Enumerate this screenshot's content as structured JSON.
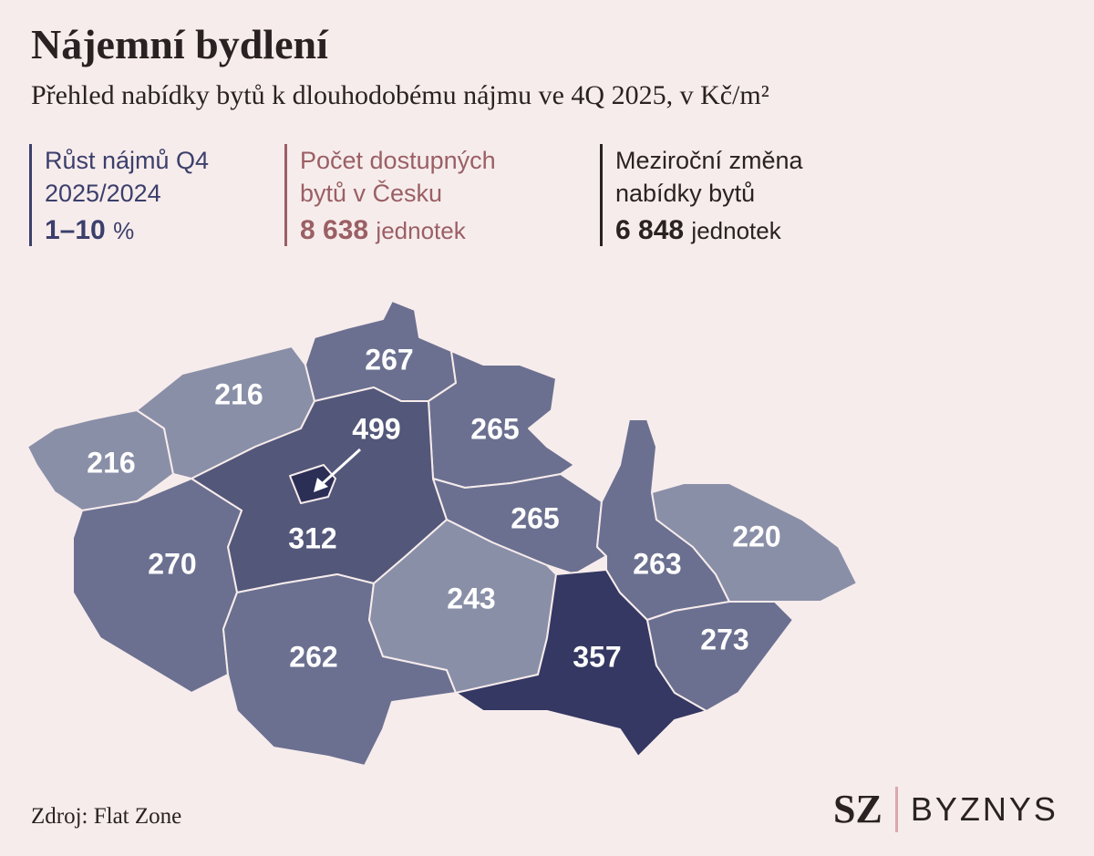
{
  "header": {
    "title": "Nájemní bydlení",
    "subtitle": "Přehled nabídky bytů k dlouhodobému nájmu ve 4Q 2025, v Kč/m²"
  },
  "stats": [
    {
      "label": "Růst nájmů Q4 2025/2024",
      "value": "1–10",
      "unit": "%",
      "color": "#3b3f6b"
    },
    {
      "label": "Počet dostupných bytů v Česku",
      "value": "8 638",
      "unit": "jednotek",
      "color": "#9a5f64"
    },
    {
      "label": "Meziroční změna nabídky bytů",
      "value": "6 848",
      "unit": "jednotek",
      "color": "#2a2222"
    }
  ],
  "regions": [
    {
      "value": 216,
      "color": "#8a8fa8"
    },
    {
      "value": 216,
      "color": "#8a8fa8"
    },
    {
      "value": 267,
      "color": "#6b7090"
    },
    {
      "value": 265,
      "color": "#6b7090"
    },
    {
      "value": 312,
      "color": "#535779"
    },
    {
      "value": 499,
      "color": "#2b2e55"
    },
    {
      "value": 270,
      "color": "#6b7090"
    },
    {
      "value": 262,
      "color": "#6b7090"
    },
    {
      "value": 265,
      "color": "#6b7090"
    },
    {
      "value": 243,
      "color": "#8a8fa8"
    },
    {
      "value": 357,
      "color": "#343862"
    },
    {
      "value": 263,
      "color": "#6b7090"
    },
    {
      "value": 220,
      "color": "#8a8fa8"
    },
    {
      "value": 273,
      "color": "#6b7090"
    }
  ],
  "source": "Zdroj: Flat Zone",
  "logo": {
    "mark": "SZ",
    "name": "BYZNYS"
  }
}
